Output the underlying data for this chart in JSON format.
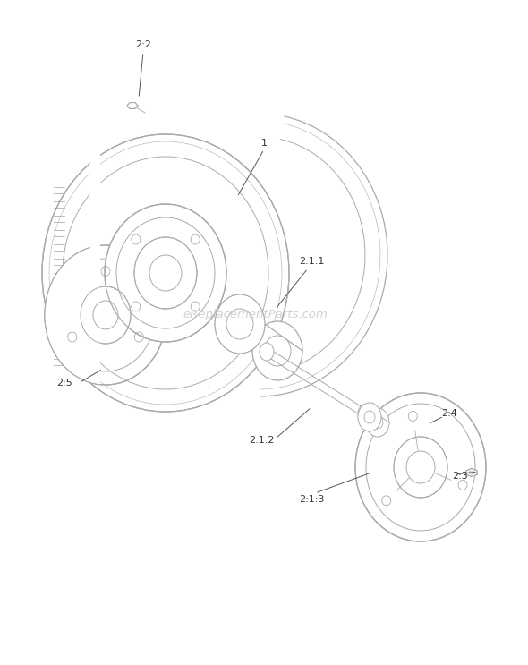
{
  "background_color": "#ffffff",
  "line_color": "#aaaaaa",
  "text_color": "#333333",
  "watermark": "eReplacementParts.com",
  "labels": [
    "1",
    "2:2",
    "2:5",
    "2:1:1",
    "2:1:2",
    "2:1:3",
    "2:3",
    "2:4"
  ]
}
